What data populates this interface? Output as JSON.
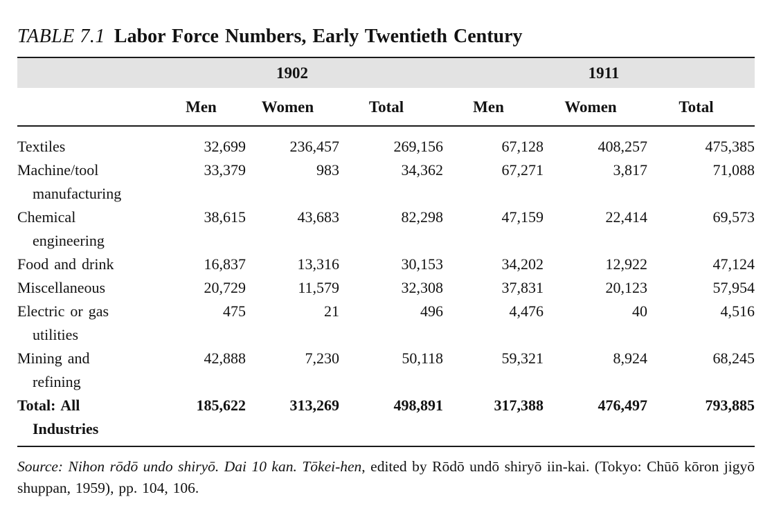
{
  "title": {
    "label": "TABLE 7.1",
    "text": "Labor Force Numbers, Early Twentieth Century"
  },
  "colors": {
    "band": "#e3e3e3",
    "rule": "#1a1a1a",
    "text": "#121212",
    "background": "#ffffff"
  },
  "table": {
    "year_groups": [
      {
        "label": "1902"
      },
      {
        "label": "1911"
      }
    ],
    "columns": [
      "Men",
      "Women",
      "Total",
      "Men",
      "Women",
      "Total"
    ],
    "rows": [
      {
        "label_lines": [
          "Textiles"
        ],
        "values": [
          "32,699",
          "236,457",
          "269,156",
          "67,128",
          "408,257",
          "475,385"
        ]
      },
      {
        "label_lines": [
          "Machine/tool",
          "manufacturing"
        ],
        "values": [
          "33,379",
          "983",
          "34,362",
          "67,271",
          "3,817",
          "71,088"
        ]
      },
      {
        "label_lines": [
          "Chemical",
          "engineering"
        ],
        "values": [
          "38,615",
          "43,683",
          "82,298",
          "47,159",
          "22,414",
          "69,573"
        ]
      },
      {
        "label_lines": [
          "Food and drink"
        ],
        "values": [
          "16,837",
          "13,316",
          "30,153",
          "34,202",
          "12,922",
          "47,124"
        ]
      },
      {
        "label_lines": [
          "Miscellaneous"
        ],
        "values": [
          "20,729",
          "11,579",
          "32,308",
          "37,831",
          "20,123",
          "57,954"
        ]
      },
      {
        "label_lines": [
          "Electric or gas",
          "utilities"
        ],
        "values": [
          "475",
          "21",
          "496",
          "4,476",
          "40",
          "4,516"
        ]
      },
      {
        "label_lines": [
          "Mining and",
          "refining"
        ],
        "values": [
          "42,888",
          "7,230",
          "50,118",
          "59,321",
          "8,924",
          "68,245"
        ]
      },
      {
        "label_lines": [
          "Total: All",
          "Industries"
        ],
        "values": [
          "185,622",
          "313,269",
          "498,891",
          "317,388",
          "476,497",
          "793,885"
        ]
      }
    ]
  },
  "source": {
    "italic": "Source: Nihon rōdō undo shiryō. Dai 10 kan. Tōkei-hen",
    "rest": ", edited by Rōdō undō shiryō iin-kai. (Tokyo: Chūō kōron jigyō shuppan, 1959), pp. 104, 106."
  }
}
